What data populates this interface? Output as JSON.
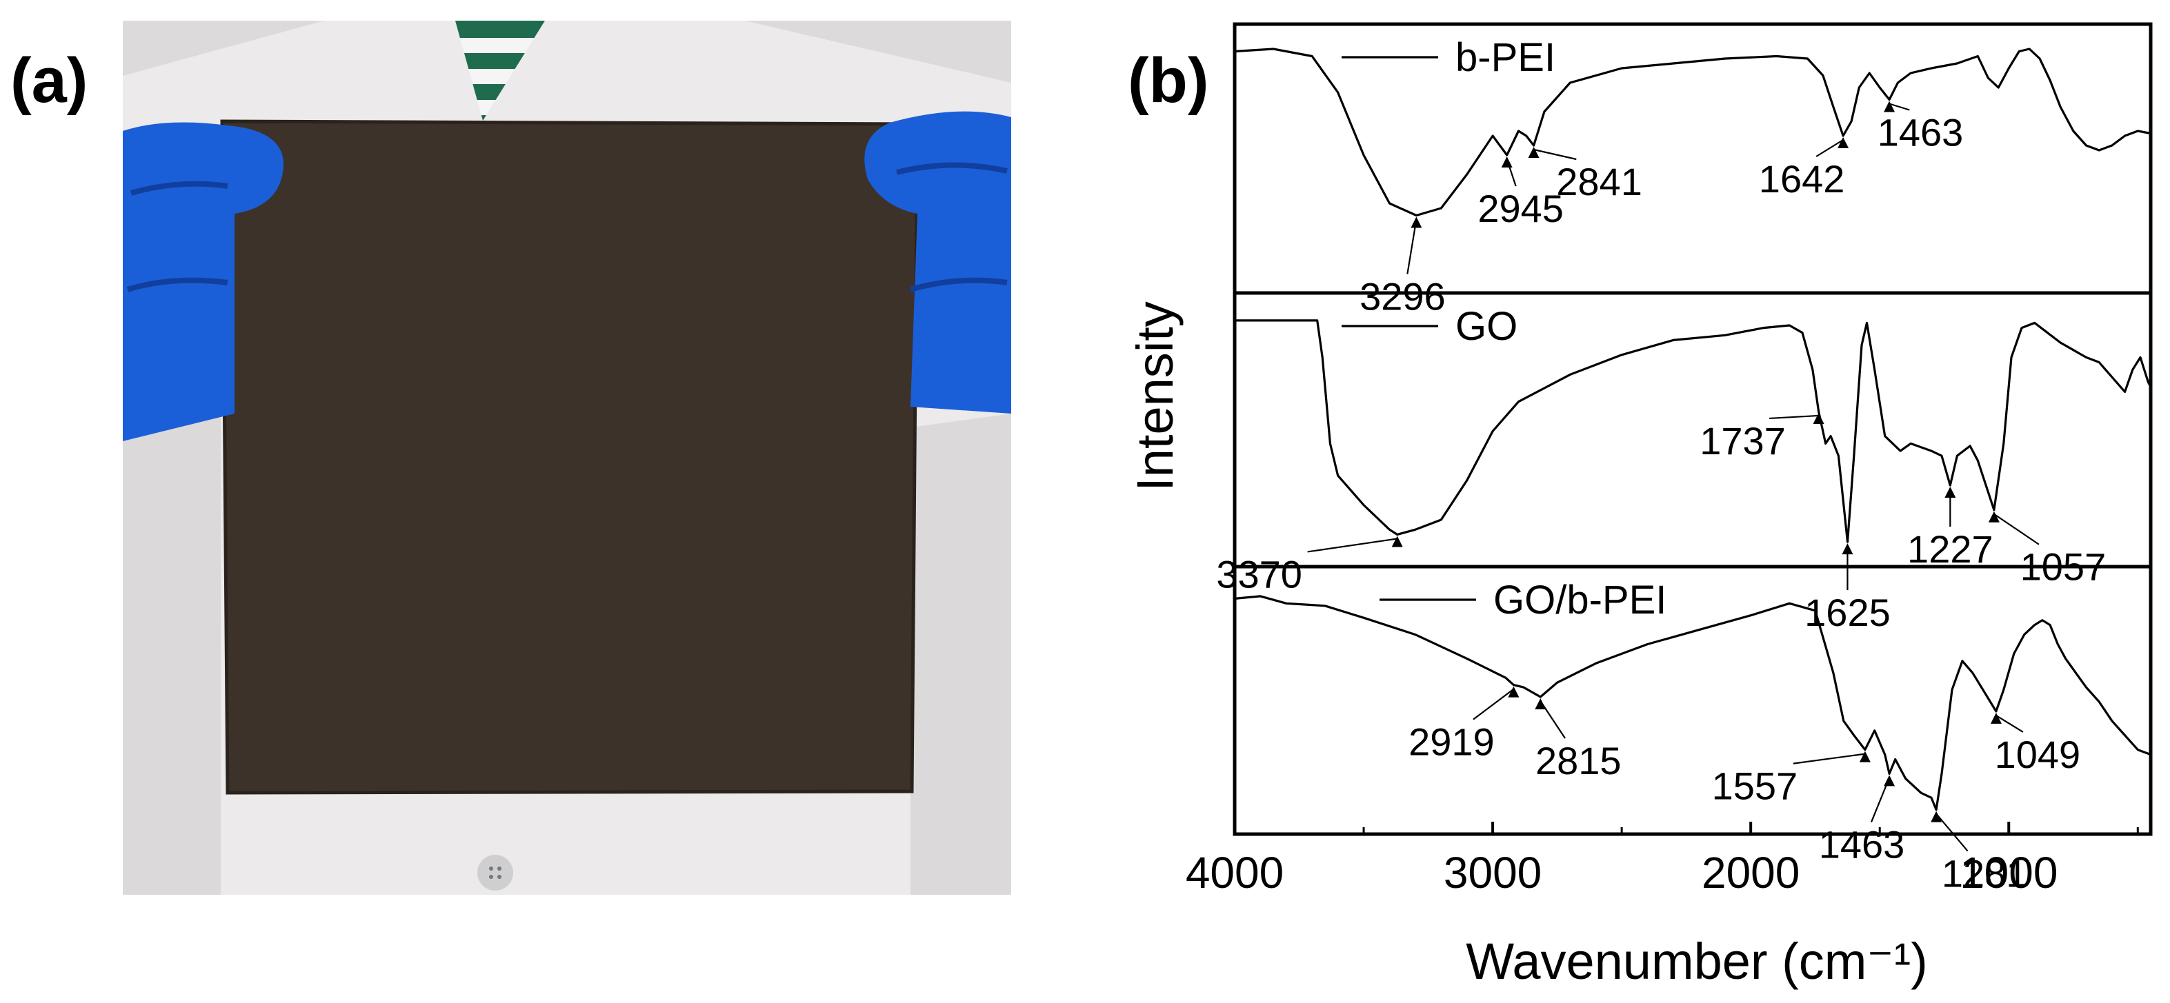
{
  "panels": {
    "a": {
      "label": "(a)"
    },
    "b": {
      "label": "(b)"
    }
  },
  "photo": {
    "colors": {
      "background": "#dcdadb",
      "coat": "#eceaea",
      "coat_shadow": "#c9c6c7",
      "film": "#3d3229",
      "film_edge": "#2a221c",
      "glove": "#1b5fd8",
      "glove_dark": "#113f9e",
      "shirt_stripe_green": "#1f6b4e",
      "button": "#cfcfd2"
    }
  },
  "chart_data": {
    "type": "line",
    "title": "",
    "xlabel": "Wavenumber (cm⁻¹)",
    "ylabel": "Intensity",
    "xlim": [
      4000,
      450
    ],
    "x_reversed": true,
    "xticks": [
      4000,
      3000,
      2000,
      1000
    ],
    "xtick_labels": [
      "4000",
      "3000",
      "2000",
      "1000"
    ],
    "minor_xticks": [
      3500,
      2500,
      1500,
      500
    ],
    "grid": false,
    "legend": "inline labels at top-left of each stacked panel",
    "series": [
      {
        "name": "b-PEI",
        "points": [
          [
            4000,
            0.95
          ],
          [
            3850,
            0.96
          ],
          [
            3700,
            0.93
          ],
          [
            3600,
            0.78
          ],
          [
            3500,
            0.52
          ],
          [
            3400,
            0.32
          ],
          [
            3296,
            0.27
          ],
          [
            3200,
            0.3
          ],
          [
            3100,
            0.44
          ],
          [
            3000,
            0.6
          ],
          [
            2945,
            0.52
          ],
          [
            2900,
            0.62
          ],
          [
            2870,
            0.6
          ],
          [
            2841,
            0.56
          ],
          [
            2800,
            0.7
          ],
          [
            2700,
            0.82
          ],
          [
            2500,
            0.88
          ],
          [
            2300,
            0.9
          ],
          [
            2100,
            0.92
          ],
          [
            1900,
            0.93
          ],
          [
            1780,
            0.92
          ],
          [
            1720,
            0.85
          ],
          [
            1680,
            0.72
          ],
          [
            1642,
            0.6
          ],
          [
            1610,
            0.66
          ],
          [
            1580,
            0.8
          ],
          [
            1540,
            0.86
          ],
          [
            1500,
            0.8
          ],
          [
            1463,
            0.75
          ],
          [
            1430,
            0.82
          ],
          [
            1380,
            0.86
          ],
          [
            1300,
            0.88
          ],
          [
            1200,
            0.9
          ],
          [
            1120,
            0.93
          ],
          [
            1080,
            0.84
          ],
          [
            1040,
            0.8
          ],
          [
            1000,
            0.88
          ],
          [
            960,
            0.95
          ],
          [
            920,
            0.96
          ],
          [
            880,
            0.92
          ],
          [
            840,
            0.83
          ],
          [
            800,
            0.72
          ],
          [
            750,
            0.62
          ],
          [
            700,
            0.56
          ],
          [
            650,
            0.54
          ],
          [
            600,
            0.56
          ],
          [
            550,
            0.6
          ],
          [
            500,
            0.62
          ],
          [
            450,
            0.61
          ]
        ],
        "annotations": [
          {
            "label": "3296",
            "x": 3296
          },
          {
            "label": "2945",
            "x": 2945
          },
          {
            "label": "2841",
            "x": 2841
          },
          {
            "label": "1642",
            "x": 1642
          },
          {
            "label": "1463",
            "x": 1463
          }
        ]
      },
      {
        "name": "GO",
        "points": [
          [
            4000,
            0.95
          ],
          [
            3800,
            0.95
          ],
          [
            3680,
            0.95
          ],
          [
            3660,
            0.8
          ],
          [
            3630,
            0.45
          ],
          [
            3600,
            0.32
          ],
          [
            3500,
            0.2
          ],
          [
            3400,
            0.1
          ],
          [
            3370,
            0.08
          ],
          [
            3300,
            0.1
          ],
          [
            3200,
            0.14
          ],
          [
            3100,
            0.3
          ],
          [
            3000,
            0.5
          ],
          [
            2900,
            0.62
          ],
          [
            2700,
            0.73
          ],
          [
            2500,
            0.81
          ],
          [
            2300,
            0.87
          ],
          [
            2100,
            0.89
          ],
          [
            1950,
            0.92
          ],
          [
            1850,
            0.93
          ],
          [
            1800,
            0.9
          ],
          [
            1760,
            0.75
          ],
          [
            1737,
            0.58
          ],
          [
            1710,
            0.45
          ],
          [
            1690,
            0.48
          ],
          [
            1660,
            0.4
          ],
          [
            1625,
            0.05
          ],
          [
            1600,
            0.4
          ],
          [
            1570,
            0.85
          ],
          [
            1550,
            0.94
          ],
          [
            1520,
            0.75
          ],
          [
            1480,
            0.48
          ],
          [
            1420,
            0.42
          ],
          [
            1380,
            0.45
          ],
          [
            1300,
            0.42
          ],
          [
            1260,
            0.4
          ],
          [
            1227,
            0.28
          ],
          [
            1200,
            0.4
          ],
          [
            1150,
            0.44
          ],
          [
            1120,
            0.38
          ],
          [
            1057,
            0.18
          ],
          [
            1020,
            0.45
          ],
          [
            990,
            0.8
          ],
          [
            950,
            0.92
          ],
          [
            900,
            0.94
          ],
          [
            850,
            0.9
          ],
          [
            800,
            0.86
          ],
          [
            750,
            0.83
          ],
          [
            700,
            0.8
          ],
          [
            650,
            0.78
          ],
          [
            600,
            0.72
          ],
          [
            550,
            0.66
          ],
          [
            520,
            0.75
          ],
          [
            490,
            0.8
          ],
          [
            460,
            0.7
          ],
          [
            450,
            0.68
          ]
        ],
        "annotations": [
          {
            "label": "3370",
            "x": 3370
          },
          {
            "label": "1737",
            "x": 1737
          },
          {
            "label": "1625",
            "x": 1625
          },
          {
            "label": "1227",
            "x": 1227
          },
          {
            "label": "1057",
            "x": 1057
          }
        ]
      },
      {
        "name": "GO/b-PEI",
        "points": [
          [
            4000,
            0.93
          ],
          [
            3900,
            0.94
          ],
          [
            3800,
            0.91
          ],
          [
            3650,
            0.9
          ],
          [
            3500,
            0.85
          ],
          [
            3300,
            0.78
          ],
          [
            3100,
            0.68
          ],
          [
            2950,
            0.6
          ],
          [
            2919,
            0.57
          ],
          [
            2880,
            0.56
          ],
          [
            2815,
            0.52
          ],
          [
            2750,
            0.58
          ],
          [
            2600,
            0.66
          ],
          [
            2400,
            0.74
          ],
          [
            2200,
            0.8
          ],
          [
            2000,
            0.86
          ],
          [
            1850,
            0.91
          ],
          [
            1750,
            0.88
          ],
          [
            1680,
            0.62
          ],
          [
            1640,
            0.42
          ],
          [
            1600,
            0.36
          ],
          [
            1557,
            0.3
          ],
          [
            1520,
            0.38
          ],
          [
            1480,
            0.28
          ],
          [
            1463,
            0.2
          ],
          [
            1440,
            0.26
          ],
          [
            1400,
            0.18
          ],
          [
            1340,
            0.12
          ],
          [
            1300,
            0.1
          ],
          [
            1281,
            0.05
          ],
          [
            1260,
            0.2
          ],
          [
            1220,
            0.55
          ],
          [
            1180,
            0.67
          ],
          [
            1140,
            0.62
          ],
          [
            1100,
            0.55
          ],
          [
            1049,
            0.46
          ],
          [
            1020,
            0.55
          ],
          [
            980,
            0.7
          ],
          [
            940,
            0.78
          ],
          [
            900,
            0.82
          ],
          [
            870,
            0.84
          ],
          [
            840,
            0.82
          ],
          [
            810,
            0.74
          ],
          [
            780,
            0.68
          ],
          [
            740,
            0.62
          ],
          [
            700,
            0.56
          ],
          [
            650,
            0.5
          ],
          [
            600,
            0.42
          ],
          [
            550,
            0.36
          ],
          [
            500,
            0.3
          ],
          [
            450,
            0.28
          ]
        ],
        "annotations": [
          {
            "label": "2919",
            "x": 2919
          },
          {
            "label": "2815",
            "x": 2815
          },
          {
            "label": "1557",
            "x": 1557
          },
          {
            "label": "1463",
            "x": 1463
          },
          {
            "label": "1281",
            "x": 1281
          },
          {
            "label": "1049",
            "x": 1049
          }
        ]
      }
    ]
  }
}
